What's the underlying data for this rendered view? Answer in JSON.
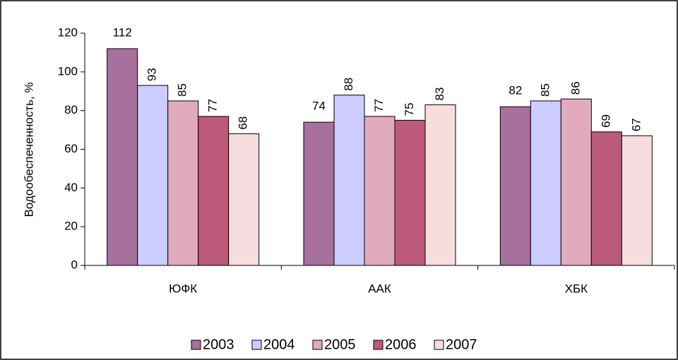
{
  "chart_data": {
    "type": "bar",
    "y_label": "Водообеспеченность, %",
    "categories": [
      "ЮФК",
      "ААК",
      "ХБК"
    ],
    "series": [
      {
        "name": "2003",
        "color": "#a8709c",
        "values": [
          112,
          74,
          82
        ]
      },
      {
        "name": "2004",
        "color": "#ccccff",
        "values": [
          93,
          88,
          85
        ]
      },
      {
        "name": "2005",
        "color": "#e2abbd",
        "values": [
          85,
          77,
          86
        ]
      },
      {
        "name": "2006",
        "color": "#bc5a7c",
        "values": [
          77,
          75,
          69
        ]
      },
      {
        "name": "2007",
        "color": "#f7dede",
        "values": [
          68,
          83,
          67
        ]
      }
    ],
    "ylim": [
      0,
      120
    ],
    "yticks": [
      0,
      20,
      40,
      60,
      80,
      100,
      120
    ]
  }
}
